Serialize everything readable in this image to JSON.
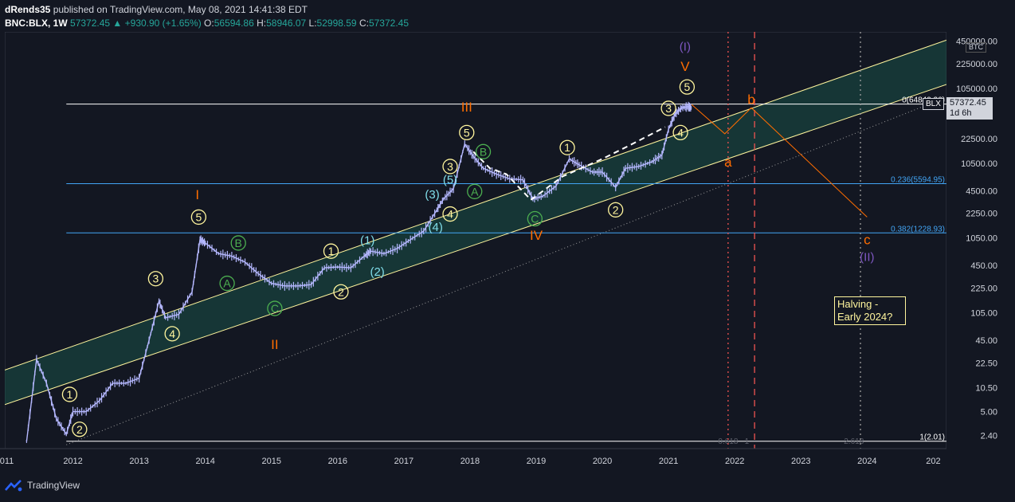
{
  "header": {
    "author_line_user": "dRends35",
    "author_line_rest": "published on TradingView.com, May 08, 2021 14:41:38 EDT",
    "symbol": "BNC:BLX, 1W",
    "last": "57372.45",
    "change": "▲ +930.90 (+1.65%)",
    "o_label": "O:",
    "o_value": "56594.86",
    "h_label": "H:",
    "h_value": "58946.07",
    "l_label": "L:",
    "l_value": "52998.59",
    "c_label": "C:",
    "c_value": "57372.45"
  },
  "price_tag": {
    "symbol": "BLX",
    "price": "57372.45",
    "countdown": "1d 6h"
  },
  "currency": "BTC",
  "note": {
    "text": "Halving - Early 2024?",
    "line1": "Halving -",
    "line2": "Early 2024?"
  },
  "footer": {
    "brand": "TradingView"
  },
  "colors": {
    "background": "#131722",
    "candle": "#b5b8ff",
    "yellow": "#fff59d",
    "orange": "#ff6d00",
    "green": "#4caf50",
    "cyan": "#80deea",
    "purple": "#7e57c2",
    "fib": "#42a5f5",
    "red": "#ef5350"
  },
  "chart_data": {
    "type": "line",
    "scale": "log",
    "x_ticks": [
      "011",
      "2012",
      "2013",
      "2014",
      "2015",
      "2016",
      "2017",
      "2018",
      "2019",
      "2020",
      "2021",
      "2022",
      "2023",
      "2024",
      "202"
    ],
    "y_ticks": [
      "450000.00",
      "225000.00",
      "105000.00",
      "22500.00",
      "10500.00",
      "4500.00",
      "2250.00",
      "1050.00",
      "450.00",
      "225.00",
      "105.00",
      "45.00",
      "22.50",
      "10.50",
      "5.00",
      "2.40"
    ],
    "ylim": [
      1.6,
      600000
    ],
    "xlim": [
      2010.97,
      2025.2
    ],
    "price_series": {
      "x": [
        2011.3,
        2011.45,
        2011.6,
        2011.75,
        2011.9,
        2012.0,
        2012.2,
        2012.4,
        2012.6,
        2012.8,
        2013.0,
        2013.15,
        2013.3,
        2013.4,
        2013.6,
        2013.8,
        2013.92,
        2014.0,
        2014.2,
        2014.4,
        2014.6,
        2014.8,
        2015.0,
        2015.2,
        2015.4,
        2015.6,
        2015.8,
        2016.0,
        2016.2,
        2016.4,
        2016.5,
        2016.7,
        2016.9,
        2017.1,
        2017.3,
        2017.5,
        2017.6,
        2017.75,
        2017.92,
        2018.05,
        2018.2,
        2018.4,
        2018.6,
        2018.8,
        2018.95,
        2019.1,
        2019.3,
        2019.5,
        2019.65,
        2019.85,
        2020.0,
        2020.2,
        2020.35,
        2020.55,
        2020.75,
        2020.9,
        2021.0,
        2021.1,
        2021.2,
        2021.3,
        2021.35
      ],
      "y": [
        2,
        25,
        12,
        4,
        2.5,
        5,
        5,
        7,
        12,
        12,
        14,
        45,
        150,
        90,
        100,
        200,
        1000,
        900,
        650,
        600,
        500,
        350,
        260,
        240,
        240,
        250,
        420,
        430,
        420,
        600,
        700,
        650,
        760,
        1000,
        1300,
        2500,
        3500,
        4800,
        19000,
        13000,
        9000,
        7500,
        6500,
        6300,
        3500,
        3800,
        5200,
        12000,
        10000,
        8000,
        8000,
        5000,
        9000,
        9500,
        11000,
        13500,
        30000,
        48000,
        58000,
        60000,
        57372
      ]
    },
    "last_value": 57372.45,
    "channel": {
      "upper": {
        "x": [
          2010.97,
          2025.2
        ],
        "y": [
          18,
          466000
        ]
      },
      "lower": {
        "x": [
          2010.97,
          2025.2
        ],
        "y": [
          6.2,
          119000
        ]
      },
      "middle_dotted": {
        "x": [
          2011.9,
          2025.2
        ],
        "y": [
          1.8,
          80000
        ]
      }
    },
    "fib_levels": [
      {
        "label": "0(64840.26)",
        "value": 64840.26,
        "color": "#ffffff"
      },
      {
        "label": "0.236(5594.95)",
        "value": 5594.95,
        "color": "#42a5f5"
      },
      {
        "label": "0.382(1228.93)",
        "value": 1228.93,
        "color": "#42a5f5"
      },
      {
        "label": "1(2.01)",
        "value": 2.01,
        "color": "#ffffff"
      }
    ],
    "fib_time_labels": [
      {
        "label": "0.618",
        "x": 2021.75
      },
      {
        "label": "1",
        "x": 2022.15
      },
      {
        "label": "2.618",
        "x": 2023.65
      }
    ],
    "vertical_lines": [
      {
        "x": 2021.9,
        "style": "dotted",
        "color": "#ef5350"
      },
      {
        "x": 2022.3,
        "style": "dashed",
        "color": "#ef5350"
      },
      {
        "x": 2023.9,
        "style": "dotted",
        "color": "#9e9e9e"
      }
    ],
    "projection": {
      "x": [
        2021.35,
        2021.85,
        2022.25,
        2024.0
      ],
      "y": [
        64000,
        26000,
        58000,
        2000
      ],
      "color": "#ff6d00"
    },
    "dashed_paths": [
      {
        "x": [
          2018.05,
          2018.3,
          2018.55,
          2018.92
        ],
        "y": [
          15000,
          9000,
          7500,
          3400
        ]
      },
      {
        "x": [
          2018.92,
          2019.4,
          2020.0,
          2020.4,
          2020.95
        ],
        "y": [
          3400,
          7000,
          12000,
          18000,
          32000
        ]
      }
    ],
    "wave_labels": [
      {
        "text": "1",
        "x": 2011.95,
        "y": 8.5,
        "style": "circle-yellow"
      },
      {
        "text": "2",
        "x": 2012.1,
        "y": 2.9,
        "style": "circle-yellow"
      },
      {
        "text": "3",
        "x": 2013.25,
        "y": 300,
        "style": "circle-yellow"
      },
      {
        "text": "4",
        "x": 2013.5,
        "y": 55,
        "style": "circle-yellow"
      },
      {
        "text": "5",
        "x": 2013.9,
        "y": 2000,
        "style": "circle-yellow"
      },
      {
        "text": "I",
        "x": 2013.88,
        "y": 4000,
        "style": "orange"
      },
      {
        "text": "A",
        "x": 2014.33,
        "y": 260,
        "style": "circle-green"
      },
      {
        "text": "B",
        "x": 2014.5,
        "y": 900,
        "style": "circle-green"
      },
      {
        "text": "C",
        "x": 2015.05,
        "y": 120,
        "style": "circle-green"
      },
      {
        "text": "II",
        "x": 2015.05,
        "y": 40,
        "style": "orange"
      },
      {
        "text": "1",
        "x": 2015.9,
        "y": 700,
        "style": "circle-yellow"
      },
      {
        "text": "2",
        "x": 2016.05,
        "y": 200,
        "style": "circle-yellow"
      },
      {
        "text": "(1)",
        "x": 2016.45,
        "y": 1000,
        "style": "cyan"
      },
      {
        "text": "(2)",
        "x": 2016.6,
        "y": 380,
        "style": "cyan"
      },
      {
        "text": "(3)",
        "x": 2017.43,
        "y": 4100,
        "style": "cyan"
      },
      {
        "text": "(4)",
        "x": 2017.48,
        "y": 1500,
        "style": "cyan"
      },
      {
        "text": "4",
        "x": 2017.7,
        "y": 2200,
        "style": "circle-yellow"
      },
      {
        "text": "3",
        "x": 2017.7,
        "y": 9500,
        "style": "circle-yellow"
      },
      {
        "text": "(5)",
        "x": 2017.7,
        "y": 6500,
        "style": "cyan"
      },
      {
        "text": "5",
        "x": 2017.95,
        "y": 27000,
        "style": "circle-yellow"
      },
      {
        "text": "III",
        "x": 2017.95,
        "y": 60000,
        "style": "orange"
      },
      {
        "text": "B",
        "x": 2018.2,
        "y": 15000,
        "style": "circle-green"
      },
      {
        "text": "A",
        "x": 2018.07,
        "y": 4400,
        "style": "circle-green"
      },
      {
        "text": "C",
        "x": 2018.98,
        "y": 1900,
        "style": "circle-green"
      },
      {
        "text": "IV",
        "x": 2019.0,
        "y": 1150,
        "style": "orange"
      },
      {
        "text": "1",
        "x": 2019.47,
        "y": 17000,
        "style": "circle-yellow"
      },
      {
        "text": "2",
        "x": 2020.2,
        "y": 2500,
        "style": "circle-yellow"
      },
      {
        "text": "3",
        "x": 2021.0,
        "y": 57000,
        "style": "circle-yellow"
      },
      {
        "text": "4",
        "x": 2021.18,
        "y": 27000,
        "style": "circle-yellow"
      },
      {
        "text": "5",
        "x": 2021.28,
        "y": 110000,
        "style": "circle-yellow"
      },
      {
        "text": "V",
        "x": 2021.25,
        "y": 210000,
        "style": "orange"
      },
      {
        "text": "(I)",
        "x": 2021.25,
        "y": 390000,
        "style": "purple"
      },
      {
        "text": "a",
        "x": 2021.9,
        "y": 11000,
        "style": "orange"
      },
      {
        "text": "b",
        "x": 2022.25,
        "y": 75000,
        "style": "orange"
      },
      {
        "text": "c",
        "x": 2024.0,
        "y": 1000,
        "style": "orange"
      },
      {
        "text": "(II)",
        "x": 2024.0,
        "y": 600,
        "style": "purple"
      }
    ]
  }
}
